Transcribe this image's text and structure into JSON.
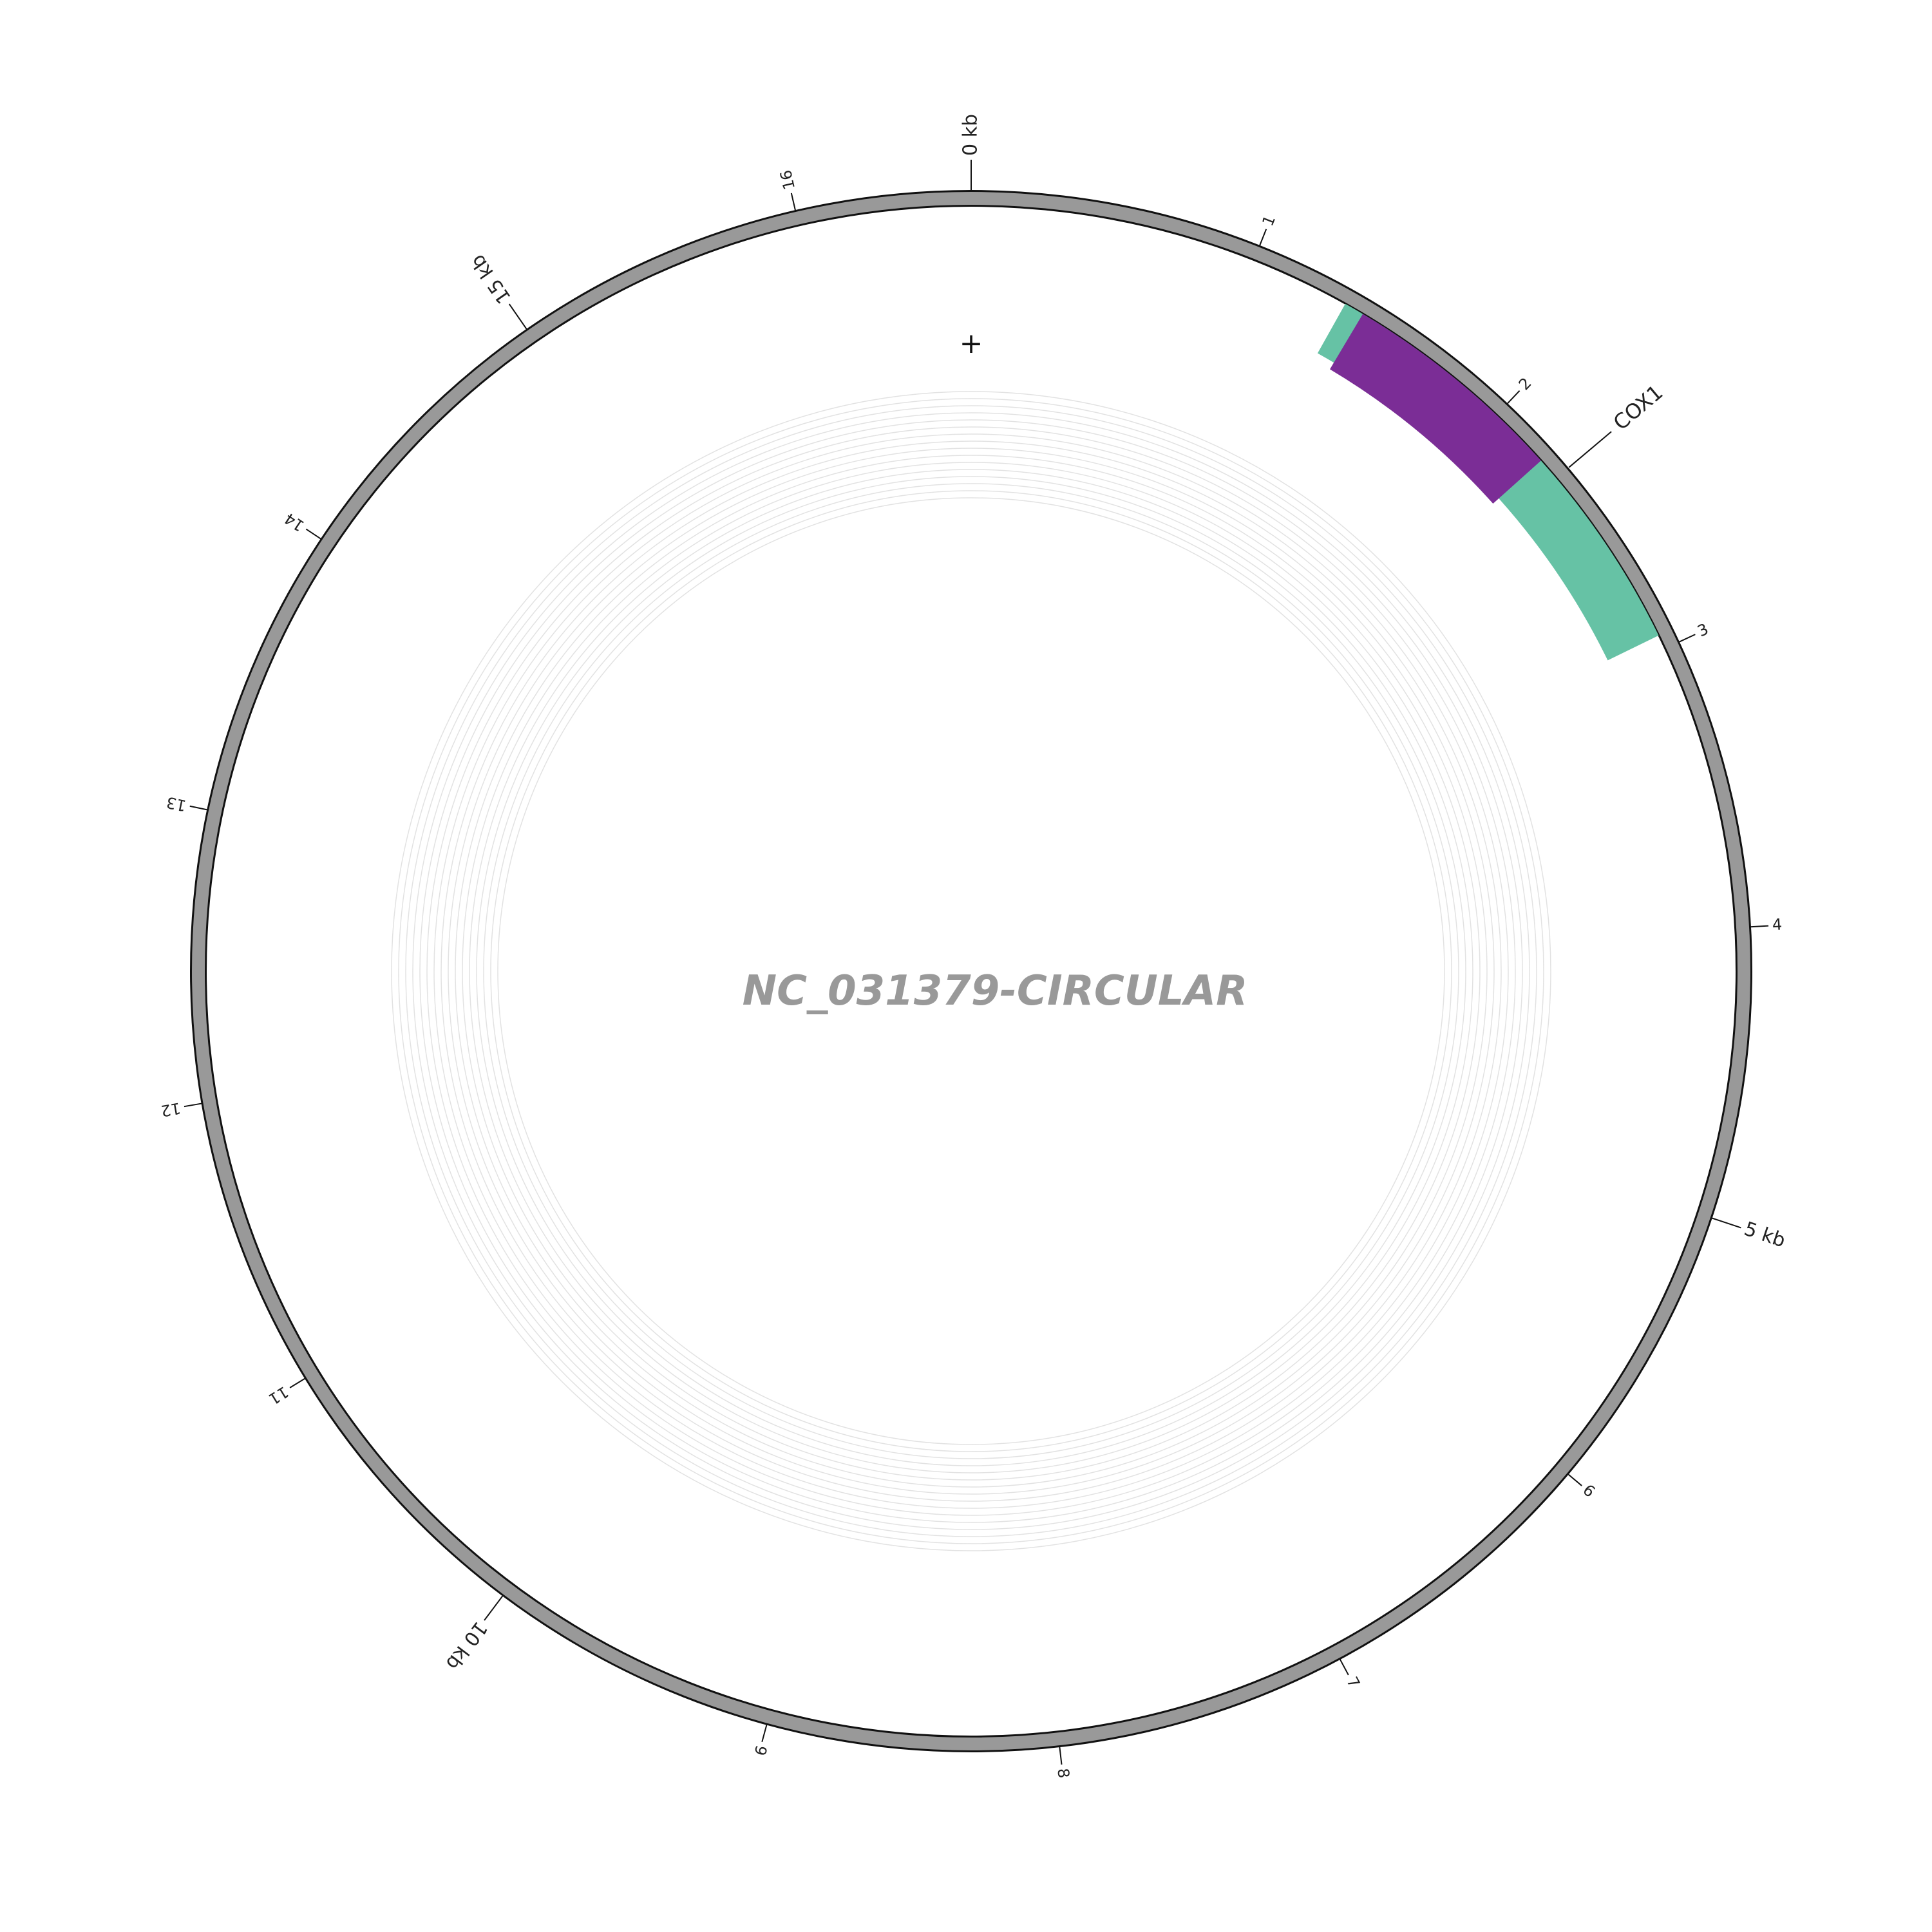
{
  "title": "NC_031379-CIRCULAR",
  "strand_marker": "+",
  "genome_length_kb": 16.6,
  "ticks": [
    {
      "kb": 0,
      "label": "0 kb",
      "major": true
    },
    {
      "kb": 1,
      "label": "1",
      "major": false
    },
    {
      "kb": 2,
      "label": "2",
      "major": false
    },
    {
      "kb": 3,
      "label": "3",
      "major": false
    },
    {
      "kb": 4,
      "label": "4",
      "major": false
    },
    {
      "kb": 5,
      "label": "5 kb",
      "major": true
    },
    {
      "kb": 6,
      "label": "6",
      "major": false
    },
    {
      "kb": 7,
      "label": "7",
      "major": false
    },
    {
      "kb": 8,
      "label": "8",
      "major": false
    },
    {
      "kb": 9,
      "label": "9",
      "major": false
    },
    {
      "kb": 10,
      "label": "10 kb",
      "major": true
    },
    {
      "kb": 11,
      "label": "11",
      "major": false
    },
    {
      "kb": 12,
      "label": "12",
      "major": false
    },
    {
      "kb": 13,
      "label": "13",
      "major": false
    },
    {
      "kb": 14,
      "label": "14",
      "major": false
    },
    {
      "kb": 15,
      "label": "15 kb",
      "major": true
    },
    {
      "kb": 16,
      "label": "16",
      "major": false
    }
  ],
  "features": [
    {
      "name": "COX1",
      "start_kb": 1.35,
      "end_kb": 2.95,
      "color": "#66c2a5",
      "segment": "exon"
    },
    {
      "name": "",
      "start_kb": 1.42,
      "end_kb": 2.22,
      "color": "#7b2d96",
      "segment": "cds"
    }
  ],
  "feature_label": {
    "text": "COX1",
    "kb": 2.3
  },
  "colors": {
    "backbone": "#999999",
    "backbone_outline": "#111111",
    "grid": "#e2e2e2",
    "title": "#999999"
  }
}
